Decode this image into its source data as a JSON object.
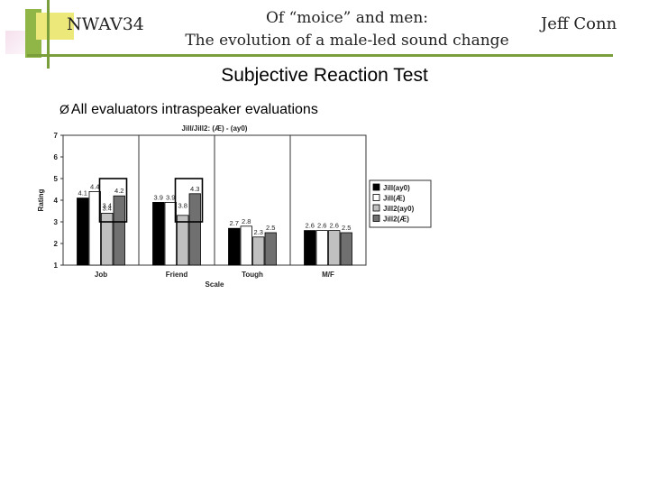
{
  "header": {
    "conference": "NWAV34",
    "title_line1": "Of “moice” and men:",
    "title_line2": "The evolution of a male-led sound change",
    "author": "Jeff Conn"
  },
  "section_title": "Subjective Reaction Test",
  "bullet": {
    "marker": "Ø",
    "text": "All evaluators intraspeaker evaluations"
  },
  "colors": {
    "jill_ay0": "#000000",
    "jill_ae": "#ffffff",
    "jill2_ay0": "#c0c0c0",
    "jill2_ae": "#707070"
  },
  "chart_data": {
    "type": "bar",
    "title": "Jill/Jill2: (Æ) - (ay0)",
    "xlabel": "Scale",
    "ylabel": "Rating",
    "ylim": [
      1,
      7
    ],
    "yticks": [
      1,
      2,
      3,
      4,
      5,
      6,
      7
    ],
    "categories": [
      "Job",
      "Friend",
      "Tough",
      "M/F"
    ],
    "series": [
      {
        "name": "Jill(ay0)",
        "values": [
          4.1,
          3.9,
          2.7,
          2.6
        ],
        "labels": [
          "4.1",
          "3.9",
          "2.7",
          "2.6"
        ],
        "color": "#000000"
      },
      {
        "name": "Jill(Æ)",
        "values": [
          4.4,
          3.9,
          2.8,
          2.6
        ],
        "labels": [
          "4.4",
          "3.9",
          "2.8",
          "2.6"
        ],
        "color": "#ffffff"
      },
      {
        "name": "Jill2(ay0)",
        "values": [
          3.4,
          3.3,
          2.3,
          2.6
        ],
        "labels": [
          "3.4",
          "",
          "2.3",
          "2.6"
        ],
        "color": "#c0c0c0"
      },
      {
        "name": "Jill2(Æ)",
        "values": [
          4.2,
          4.3,
          2.5,
          2.5
        ],
        "labels": [
          "4.2",
          "4.3",
          "2.5",
          "2.5"
        ],
        "color": "#707070"
      }
    ],
    "annotations": [
      {
        "category": "Job",
        "text": "3.4"
      },
      {
        "category": "Friend",
        "text": "3.8"
      }
    ],
    "legend_position": "right",
    "grid": false
  }
}
